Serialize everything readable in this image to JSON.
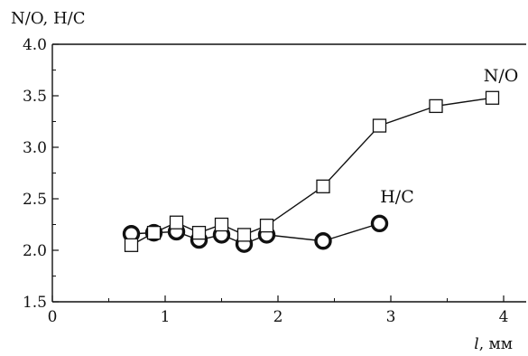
{
  "chart_data": {
    "type": "line",
    "ylabel": "N/O, H/C",
    "xlabel_var": "l",
    "xlabel_unit": ", мм",
    "xlim": [
      0,
      4.2
    ],
    "ylim": [
      1.5,
      4.0
    ],
    "x_ticks": [
      "0",
      "1",
      "2",
      "3",
      "4"
    ],
    "y_ticks": [
      "1.5",
      "2.0",
      "2.5",
      "3.0",
      "3.5",
      "4.0"
    ],
    "grid": false,
    "series": [
      {
        "name": "N/O",
        "marker": "square",
        "x": [
          0.7,
          0.9,
          1.1,
          1.3,
          1.5,
          1.7,
          1.9,
          2.4,
          2.9,
          3.4,
          3.9
        ],
        "y": [
          2.05,
          2.17,
          2.27,
          2.17,
          2.25,
          2.15,
          2.24,
          2.62,
          3.21,
          3.4,
          3.48
        ]
      },
      {
        "name": "H/C",
        "marker": "circle",
        "x": [
          0.7,
          0.9,
          1.1,
          1.3,
          1.5,
          1.7,
          1.9,
          2.4,
          2.9
        ],
        "y": [
          2.16,
          2.17,
          2.18,
          2.1,
          2.15,
          2.06,
          2.15,
          2.09,
          2.26
        ]
      }
    ]
  }
}
